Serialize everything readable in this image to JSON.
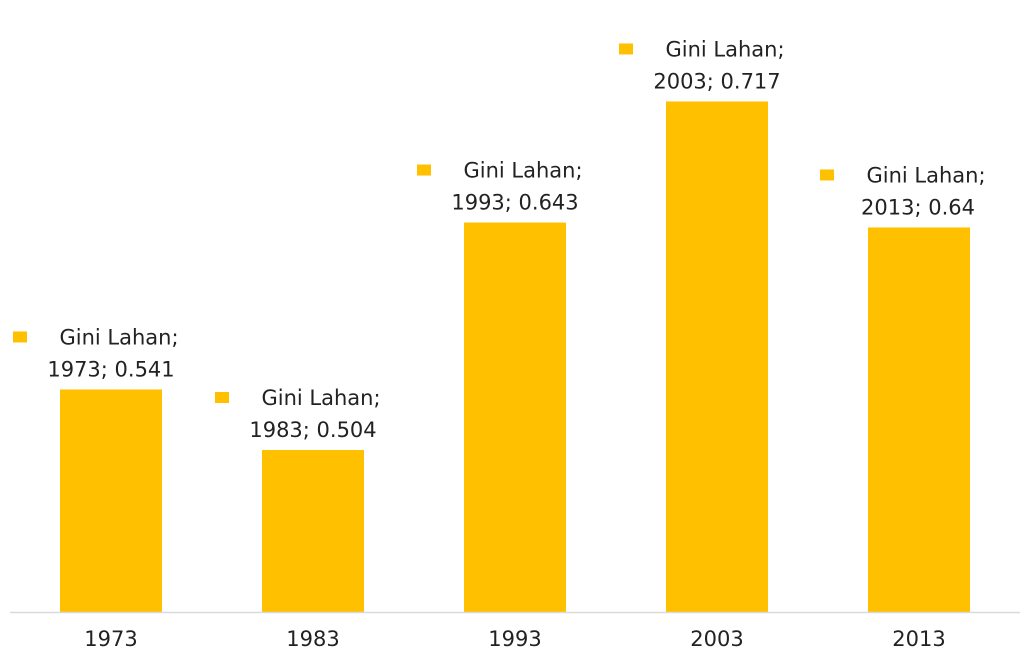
{
  "chart_data": {
    "type": "bar",
    "categories": [
      "1973",
      "1983",
      "1993",
      "2003",
      "2013"
    ],
    "series": [
      {
        "name": "Gini Lahan",
        "values": [
          0.541,
          0.504,
          0.643,
          0.717,
          0.64
        ],
        "color": "#FFC000"
      }
    ],
    "data_labels": [
      {
        "line1": "Gini Lahan;",
        "line2": "1973; 0.541"
      },
      {
        "line1": "Gini Lahan;",
        "line2": "1983; 0.504"
      },
      {
        "line1": "Gini Lahan;",
        "line2": "1993; 0.643"
      },
      {
        "line1": "Gini Lahan;",
        "line2": "2003; 0.717"
      },
      {
        "line1": "Gini Lahan;",
        "line2": "2013; 0.64"
      }
    ],
    "ylim": [
      0.405,
      0.735
    ],
    "grid": false,
    "legend": "none",
    "axis_color": "#d9d9d9"
  }
}
